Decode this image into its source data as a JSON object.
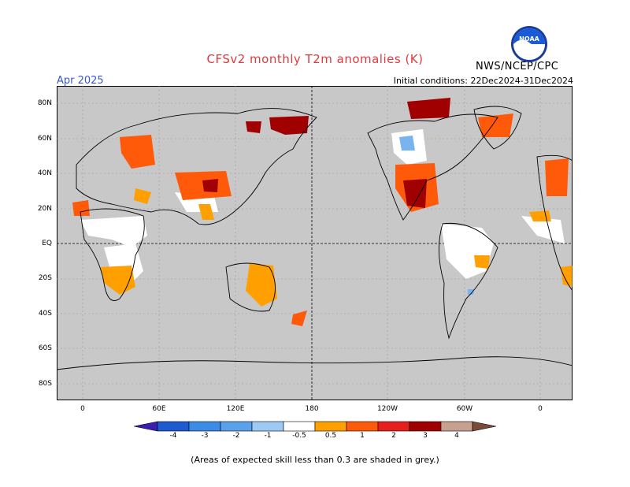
{
  "header": {
    "title": "CFSv2 monthly T2m anomalies (K)",
    "month": "Apr 2025",
    "initial_conditions": "Initial conditions: 22Dec2024-31Dec2024",
    "agency": "NWS/NCEP/CPC",
    "logo_text": "NOAA"
  },
  "map": {
    "lat_labels": [
      "80N",
      "60N",
      "40N",
      "20N",
      "EQ",
      "20S",
      "40S",
      "60S",
      "80S"
    ],
    "lon_labels": [
      "0",
      "60E",
      "120E",
      "180",
      "120W",
      "60W",
      "0"
    ],
    "colors": {
      "skill_grey": "#c8c8c8",
      "neutral": "#ffffff",
      "cold_4": "#3a1eb4",
      "cold_3": "#1e5ad0",
      "cold_2": "#3c8ce6",
      "cold_1": "#78b4f0",
      "warm_1": "#ffa000",
      "warm_2": "#ff5a0a",
      "warm_3": "#e61e1e",
      "warm_4": "#a00000",
      "warm_5": "#c8a090",
      "warm_6": "#7a4a3a"
    }
  },
  "colorbar": {
    "labels": [
      "-4",
      "-3",
      "-2",
      "-1",
      "-0.5",
      "0.5",
      "1",
      "2",
      "3",
      "4"
    ],
    "colors": [
      "#3a1eb4",
      "#1e5ad0",
      "#3c8ce6",
      "#5aa0ea",
      "#9ccaf4",
      "#ffffff",
      "#ffa000",
      "#ff5a0a",
      "#e61e1e",
      "#a00000",
      "#c8a090",
      "#7a4a3a"
    ]
  },
  "footer": {
    "note": "(Areas of expected skill less than 0.3 are shaded in grey.)"
  }
}
